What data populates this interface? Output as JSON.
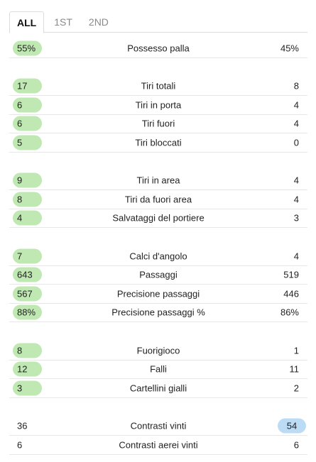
{
  "tabs": [
    "ALL",
    "1ST",
    "2ND"
  ],
  "stats": [
    {
      "label": "Possesso palla",
      "home": "55%",
      "away": "45%",
      "winner": "home",
      "gap_before": false
    },
    {
      "label": "Tiri totali",
      "home": "17",
      "away": "8",
      "winner": "home",
      "gap_before": true
    },
    {
      "label": "Tiri in porta",
      "home": "6",
      "away": "4",
      "winner": "home",
      "gap_before": false
    },
    {
      "label": "Tiri fuori",
      "home": "6",
      "away": "4",
      "winner": "home",
      "gap_before": false
    },
    {
      "label": "Tiri bloccati",
      "home": "5",
      "away": "0",
      "winner": "home",
      "gap_before": false
    },
    {
      "label": "Tiri in area",
      "home": "9",
      "away": "4",
      "winner": "home",
      "gap_before": true
    },
    {
      "label": "Tiri da fuori area",
      "home": "8",
      "away": "4",
      "winner": "home",
      "gap_before": false
    },
    {
      "label": "Salvataggi del portiere",
      "home": "4",
      "away": "3",
      "winner": "home",
      "gap_before": false
    },
    {
      "label": "Calci d'angolo",
      "home": "7",
      "away": "4",
      "winner": "home",
      "gap_before": true
    },
    {
      "label": "Passaggi",
      "home": "643",
      "away": "519",
      "winner": "home",
      "gap_before": false
    },
    {
      "label": "Precisione passaggi",
      "home": "567",
      "away": "446",
      "winner": "home",
      "gap_before": false
    },
    {
      "label": "Precisione passaggi %",
      "home": "88%",
      "away": "86%",
      "winner": "home",
      "gap_before": false
    },
    {
      "label": "Fuorigioco",
      "home": "8",
      "away": "1",
      "winner": "home",
      "gap_before": true
    },
    {
      "label": "Falli",
      "home": "12",
      "away": "11",
      "winner": "home",
      "gap_before": false
    },
    {
      "label": "Cartellini gialli",
      "home": "3",
      "away": "2",
      "winner": "home",
      "gap_before": false
    },
    {
      "label": "Contrasti vinti",
      "home": "36",
      "away": "54",
      "winner": "away",
      "gap_before": true
    },
    {
      "label": "Contrasti aerei vinti",
      "home": "6",
      "away": "6",
      "winner": "none",
      "gap_before": false
    }
  ]
}
